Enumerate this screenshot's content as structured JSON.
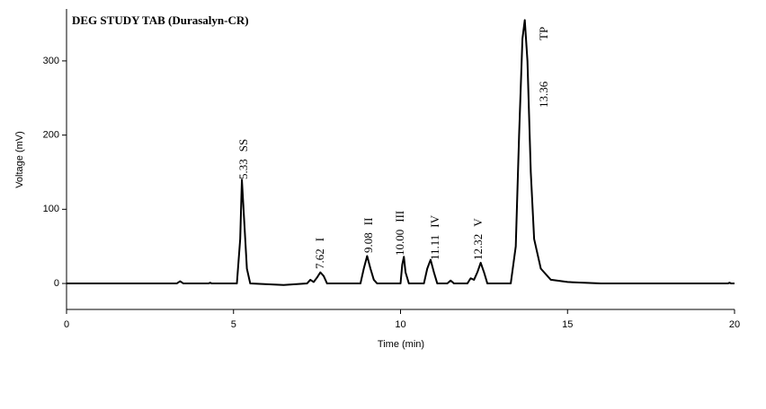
{
  "chart_data": {
    "type": "line",
    "title": "DEG STUDY TAB  (Durasalyn-CR)",
    "x_label": "Time (min)",
    "y_label": "Voltage (mV)",
    "series": [
      {
        "color": "#000000",
        "x": [
          0,
          3.3,
          3.4,
          3.5,
          4.25,
          4.3,
          4.35,
          5.1,
          5.2,
          5.25,
          5.3,
          5.4,
          5.5,
          6.5,
          7.2,
          7.3,
          7.4,
          7.5,
          7.6,
          7.7,
          7.8,
          8.8,
          8.9,
          9.0,
          9.1,
          9.2,
          9.3,
          10.0,
          10.05,
          10.1,
          10.15,
          10.25,
          10.7,
          10.8,
          10.9,
          11.0,
          11.1,
          11.4,
          11.5,
          11.6,
          12.0,
          12.1,
          12.2,
          12.3,
          12.4,
          12.5,
          12.6,
          13.3,
          13.45,
          13.55,
          13.65,
          13.72,
          13.8,
          13.9,
          14.0,
          14.2,
          14.5,
          15,
          16,
          19.8,
          19.85,
          19.9,
          20
        ],
        "y": [
          0,
          0,
          3,
          0,
          0,
          1,
          0,
          0,
          60,
          140,
          100,
          20,
          0,
          -2,
          0,
          5,
          2,
          8,
          15,
          10,
          0,
          0,
          20,
          37,
          20,
          5,
          0,
          0,
          25,
          36,
          15,
          0,
          0,
          20,
          32,
          15,
          0,
          0,
          4,
          0,
          0,
          7,
          5,
          15,
          28,
          15,
          0,
          0,
          50,
          200,
          330,
          355,
          300,
          150,
          60,
          20,
          5,
          2,
          0,
          0,
          1,
          0,
          0
        ]
      }
    ],
    "peaks": [
      {
        "time": "5.33",
        "name": "SS"
      },
      {
        "time": "7.62",
        "name": "I"
      },
      {
        "time": "9.08",
        "name": "II"
      },
      {
        "time": "10.00",
        "name": "III"
      },
      {
        "time": "11.11",
        "name": "IV"
      },
      {
        "time": "12.32",
        "name": "V"
      },
      {
        "time": "13.36",
        "name": "TP"
      }
    ],
    "xlim": [
      0,
      20
    ],
    "xticks": [
      0,
      5,
      10,
      15,
      20
    ],
    "ylim": [
      -35,
      370
    ],
    "yticks": [
      0,
      100,
      200,
      300
    ]
  }
}
